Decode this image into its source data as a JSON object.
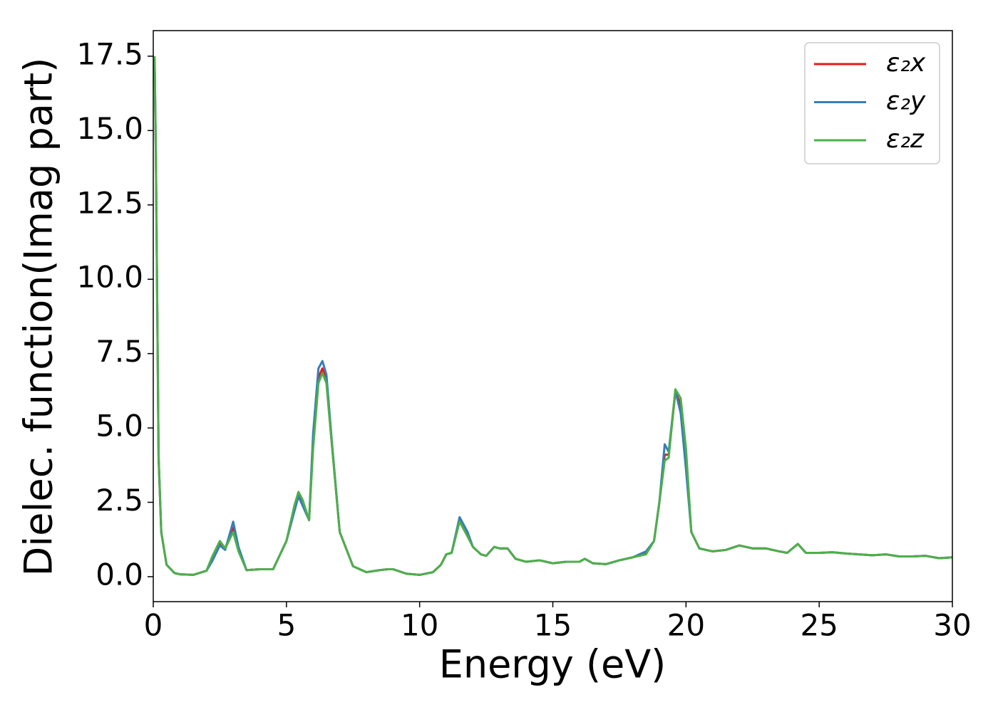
{
  "chart_data": {
    "type": "line",
    "xlabel": "Energy (eV)",
    "ylabel": "Dielec. function(Imag part)",
    "x": [
      0.05,
      0.1,
      0.2,
      0.3,
      0.5,
      0.8,
      1.0,
      1.5,
      2.0,
      2.2,
      2.5,
      2.7,
      3.0,
      3.2,
      3.5,
      4.0,
      4.5,
      5.0,
      5.3,
      5.45,
      5.6,
      5.85,
      6.0,
      6.2,
      6.35,
      6.5,
      6.7,
      7.0,
      7.5,
      8.0,
      8.5,
      8.8,
      9.0,
      9.5,
      10.0,
      10.5,
      10.8,
      11.0,
      11.2,
      11.5,
      11.8,
      12.0,
      12.3,
      12.5,
      12.8,
      13.0,
      13.3,
      13.6,
      14.0,
      14.5,
      15.0,
      15.5,
      16.0,
      16.2,
      16.5,
      17.0,
      17.5,
      18.0,
      18.5,
      18.8,
      19.0,
      19.2,
      19.35,
      19.6,
      19.8,
      20.0,
      20.2,
      20.5,
      21.0,
      21.5,
      22.0,
      22.5,
      23.0,
      23.5,
      23.8,
      24.2,
      24.5,
      25.0,
      25.5,
      26.0,
      27.0,
      27.5,
      28.0,
      28.5,
      29.0,
      29.5,
      30.0
    ],
    "series": [
      {
        "name": "ε₂x",
        "color": "#e41a1c",
        "values": [
          17.4,
          14.0,
          4.0,
          1.5,
          0.4,
          0.12,
          0.08,
          0.06,
          0.2,
          0.6,
          1.15,
          0.95,
          1.65,
          0.9,
          0.22,
          0.25,
          0.25,
          1.2,
          2.3,
          2.8,
          2.5,
          1.9,
          4.5,
          6.7,
          7.0,
          6.6,
          4.5,
          1.5,
          0.35,
          0.15,
          0.22,
          0.25,
          0.25,
          0.1,
          0.06,
          0.15,
          0.4,
          0.75,
          0.8,
          1.9,
          1.4,
          1.0,
          0.75,
          0.7,
          1.0,
          0.95,
          0.95,
          0.6,
          0.5,
          0.55,
          0.45,
          0.5,
          0.5,
          0.6,
          0.45,
          0.42,
          0.55,
          0.65,
          0.8,
          1.2,
          2.5,
          4.1,
          4.1,
          6.2,
          5.8,
          4.0,
          1.5,
          0.95,
          0.85,
          0.9,
          1.05,
          0.95,
          0.95,
          0.85,
          0.8,
          1.1,
          0.8,
          0.8,
          0.82,
          0.78,
          0.72,
          0.75,
          0.68,
          0.68,
          0.7,
          0.62,
          0.65
        ]
      },
      {
        "name": "ε₂y",
        "color": "#377eb8",
        "values": [
          17.3,
          14.0,
          4.0,
          1.5,
          0.4,
          0.12,
          0.08,
          0.06,
          0.2,
          0.5,
          1.05,
          0.9,
          1.85,
          1.0,
          0.22,
          0.25,
          0.25,
          1.2,
          2.2,
          2.7,
          2.4,
          1.9,
          4.8,
          7.0,
          7.25,
          6.8,
          4.6,
          1.5,
          0.35,
          0.15,
          0.22,
          0.25,
          0.25,
          0.1,
          0.06,
          0.15,
          0.4,
          0.75,
          0.8,
          2.0,
          1.5,
          1.0,
          0.75,
          0.7,
          1.0,
          0.95,
          0.95,
          0.6,
          0.5,
          0.55,
          0.45,
          0.5,
          0.5,
          0.6,
          0.45,
          0.42,
          0.55,
          0.65,
          0.85,
          1.2,
          2.5,
          4.45,
          4.2,
          6.25,
          5.5,
          3.6,
          1.5,
          0.95,
          0.85,
          0.9,
          1.05,
          0.95,
          0.95,
          0.85,
          0.8,
          1.1,
          0.8,
          0.8,
          0.82,
          0.78,
          0.72,
          0.75,
          0.68,
          0.68,
          0.7,
          0.62,
          0.65
        ]
      },
      {
        "name": "ε₂z",
        "color": "#4daf4a",
        "values": [
          17.5,
          14.2,
          4.1,
          1.5,
          0.4,
          0.12,
          0.08,
          0.06,
          0.2,
          0.65,
          1.2,
          0.95,
          1.5,
          0.85,
          0.22,
          0.25,
          0.25,
          1.2,
          2.4,
          2.85,
          2.6,
          1.9,
          4.3,
          6.5,
          6.85,
          6.5,
          4.5,
          1.5,
          0.35,
          0.15,
          0.22,
          0.25,
          0.25,
          0.1,
          0.06,
          0.15,
          0.4,
          0.75,
          0.8,
          1.85,
          1.35,
          1.0,
          0.75,
          0.7,
          1.0,
          0.95,
          0.95,
          0.6,
          0.5,
          0.55,
          0.45,
          0.5,
          0.5,
          0.6,
          0.45,
          0.42,
          0.55,
          0.65,
          0.75,
          1.2,
          2.5,
          3.9,
          4.0,
          6.3,
          6.0,
          4.3,
          1.5,
          0.95,
          0.85,
          0.9,
          1.05,
          0.95,
          0.95,
          0.85,
          0.8,
          1.1,
          0.8,
          0.8,
          0.82,
          0.78,
          0.72,
          0.75,
          0.68,
          0.68,
          0.7,
          0.62,
          0.65
        ]
      }
    ],
    "xlim": [
      0,
      30
    ],
    "xticks": [
      0,
      5,
      10,
      15,
      20,
      25,
      30
    ],
    "ylim": [
      -0.84,
      18.36
    ],
    "yticks": [
      {
        "value": 0,
        "label": "0.0"
      },
      2.5,
      {
        "value": 5,
        "label": "5.0"
      },
      7.5,
      {
        "value": 10,
        "label": "10.0"
      },
      12.5,
      {
        "value": 15,
        "label": "15.0"
      },
      17.5
    ],
    "grid": false,
    "legend": "upper right"
  }
}
